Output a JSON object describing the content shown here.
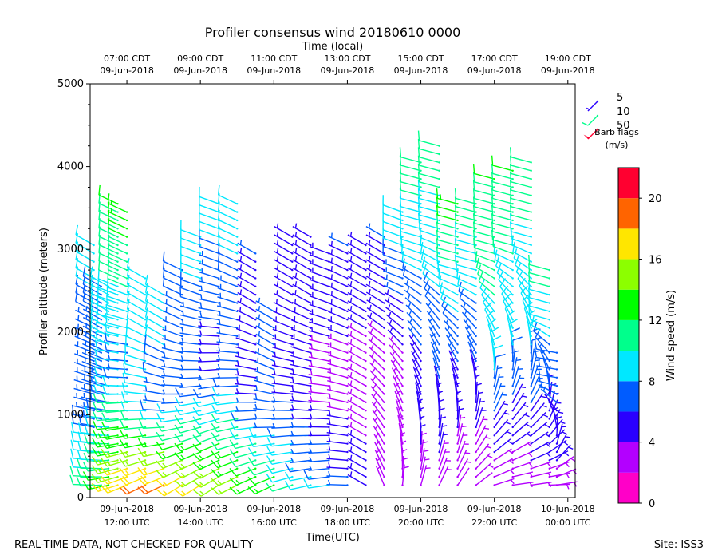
{
  "chart_data": {
    "type": "wind-barb",
    "title": "Profiler consensus wind 20180610 0000",
    "top_axis_label": "Time (local)",
    "xlabel": "Time(UTC)",
    "ylabel": "Profiler altitude (meters)",
    "ylim": [
      0,
      5000
    ],
    "y_ticks": [
      0,
      1000,
      2000,
      3000,
      4000,
      5000
    ],
    "x_range_hours_utc": [
      11.0,
      24.2
    ],
    "bottom_ticks": [
      {
        "hour": 12,
        "line1": "09-Jun-2018",
        "line2": "12:00 UTC"
      },
      {
        "hour": 14,
        "line1": "09-Jun-2018",
        "line2": "14:00 UTC"
      },
      {
        "hour": 16,
        "line1": "09-Jun-2018",
        "line2": "16:00 UTC"
      },
      {
        "hour": 18,
        "line1": "09-Jun-2018",
        "line2": "18:00 UTC"
      },
      {
        "hour": 20,
        "line1": "09-Jun-2018",
        "line2": "20:00 UTC"
      },
      {
        "hour": 22,
        "line1": "09-Jun-2018",
        "line2": "22:00 UTC"
      },
      {
        "hour": 24,
        "line1": "10-Jun-2018",
        "line2": "00:00 UTC"
      }
    ],
    "top_ticks": [
      {
        "hour": 12,
        "line1": "07:00 CDT",
        "line2": "09-Jun-2018"
      },
      {
        "hour": 14,
        "line1": "09:00 CDT",
        "line2": "09-Jun-2018"
      },
      {
        "hour": 16,
        "line1": "11:00 CDT",
        "line2": "09-Jun-2018"
      },
      {
        "hour": 18,
        "line1": "13:00 CDT",
        "line2": "09-Jun-2018"
      },
      {
        "hour": 20,
        "line1": "15:00 CDT",
        "line2": "09-Jun-2018"
      },
      {
        "hour": 22,
        "line1": "17:00 CDT",
        "line2": "09-Jun-2018"
      },
      {
        "hour": 24,
        "line1": "19:00 CDT",
        "line2": "09-Jun-2018"
      }
    ],
    "colorbar": {
      "label": "Wind speed (m/s)",
      "range": [
        0,
        22
      ],
      "ticks": [
        0,
        4,
        8,
        12,
        16,
        20
      ],
      "bins": [
        {
          "min": 0,
          "max": 2,
          "color": "#ff00c8"
        },
        {
          "min": 2,
          "max": 4,
          "color": "#b300ff"
        },
        {
          "min": 4,
          "max": 6,
          "color": "#2a00ff"
        },
        {
          "min": 6,
          "max": 8,
          "color": "#005cff"
        },
        {
          "min": 8,
          "max": 10,
          "color": "#00e8ff"
        },
        {
          "min": 10,
          "max": 12,
          "color": "#00ff8c"
        },
        {
          "min": 12,
          "max": 14,
          "color": "#00ff00"
        },
        {
          "min": 14,
          "max": 16,
          "color": "#8cff00"
        },
        {
          "min": 16,
          "max": 18,
          "color": "#ffe600"
        },
        {
          "min": 18,
          "max": 20,
          "color": "#ff6400"
        },
        {
          "min": 20,
          "max": 22,
          "color": "#ff0030"
        }
      ]
    },
    "legend": {
      "placement": "top-right",
      "entries": [
        {
          "label": "5",
          "speed": 5
        },
        {
          "label": "10",
          "speed": 10
        },
        {
          "label": "50",
          "speed": 50
        }
      ],
      "caption_line1": "Barb flags",
      "caption_line2": "(m/s)"
    },
    "profiles": [
      {
        "hour": 11.1,
        "top": 3100,
        "dirLow": 270,
        "dirHigh": 300,
        "spdLow": 11,
        "spdMid": 6,
        "spdHigh": 9
      },
      {
        "hour": 11.3,
        "top": 2600,
        "dirLow": 265,
        "dirHigh": 300,
        "spdLow": 12,
        "spdMid": 6,
        "spdHigh": 8
      },
      {
        "hour": 11.5,
        "top": 2550,
        "dirLow": 255,
        "dirHigh": 300,
        "spdLow": 14,
        "spdMid": 7,
        "spdHigh": 9
      },
      {
        "hour": 11.75,
        "top": 3550,
        "dirLow": 250,
        "dirHigh": 295,
        "spdLow": 17,
        "spdMid": 8,
        "spdHigh": 12
      },
      {
        "hour": 12.0,
        "top": 3450,
        "dirLow": 245,
        "dirHigh": 295,
        "spdLow": 19,
        "spdMid": 7,
        "spdHigh": 13
      },
      {
        "hour": 12.5,
        "top": 2700,
        "dirLow": 240,
        "dirHigh": 300,
        "spdLow": 20,
        "spdMid": 8,
        "spdHigh": 9
      },
      {
        "hour": 13.0,
        "top": 2450,
        "dirLow": 240,
        "dirHigh": 300,
        "spdLow": 21,
        "spdMid": 7,
        "spdHigh": 9
      },
      {
        "hour": 13.5,
        "top": 2800,
        "dirLow": 235,
        "dirHigh": 295,
        "spdLow": 19,
        "spdMid": 6,
        "spdHigh": 8
      },
      {
        "hour": 14.0,
        "top": 3200,
        "dirLow": 235,
        "dirHigh": 290,
        "spdLow": 18,
        "spdMid": 6,
        "spdHigh": 9
      },
      {
        "hour": 14.5,
        "top": 3600,
        "dirLow": 235,
        "dirHigh": 290,
        "spdLow": 17,
        "spdMid": 5,
        "spdHigh": 9
      },
      {
        "hour": 15.0,
        "top": 3550,
        "dirLow": 240,
        "dirHigh": 295,
        "spdLow": 16,
        "spdMid": 6,
        "spdHigh": 9
      },
      {
        "hour": 15.5,
        "top": 2950,
        "dirLow": 240,
        "dirHigh": 300,
        "spdLow": 15,
        "spdMid": 5,
        "spdHigh": 6
      },
      {
        "hour": 16.0,
        "top": 2300,
        "dirLow": 240,
        "dirHigh": 300,
        "spdLow": 14,
        "spdMid": 6,
        "spdHigh": 7
      },
      {
        "hour": 16.5,
        "top": 3200,
        "dirLow": 250,
        "dirHigh": 300,
        "spdLow": 11,
        "spdMid": 5,
        "spdHigh": 6
      },
      {
        "hour": 17.0,
        "top": 3200,
        "dirLow": 255,
        "dirHigh": 300,
        "spdLow": 9,
        "spdMid": 4,
        "spdHigh": 6
      },
      {
        "hour": 17.5,
        "top": 3000,
        "dirLow": 260,
        "dirHigh": 290,
        "spdLow": 9,
        "spdMid": 3,
        "spdHigh": 6
      },
      {
        "hour": 18.0,
        "top": 3050,
        "dirLow": 270,
        "dirHigh": 295,
        "spdLow": 7,
        "spdMid": 3,
        "spdHigh": 6
      },
      {
        "hour": 18.5,
        "top": 3100,
        "dirLow": 300,
        "dirHigh": 300,
        "spdLow": 5,
        "spdMid": 3,
        "spdHigh": 6
      },
      {
        "hour": 19.0,
        "top": 3150,
        "dirLow": 340,
        "dirHigh": 300,
        "spdLow": 3,
        "spdMid": 3,
        "spdHigh": 6
      },
      {
        "hour": 19.5,
        "top": 3500,
        "dirLow": 10,
        "dirHigh": 290,
        "spdLow": 3,
        "spdMid": 3,
        "spdHigh": 10
      },
      {
        "hour": 20.0,
        "top": 4050,
        "dirLow": 20,
        "dirHigh": 285,
        "spdLow": 3,
        "spdMid": 6,
        "spdHigh": 11
      },
      {
        "hour": 20.5,
        "top": 4250,
        "dirLow": 30,
        "dirHigh": 285,
        "spdLow": 3,
        "spdMid": 7,
        "spdHigh": 11
      },
      {
        "hour": 21.0,
        "top": 3600,
        "dirLow": 40,
        "dirHigh": 285,
        "spdLow": 2,
        "spdMid": 6,
        "spdHigh": 13
      },
      {
        "hour": 21.5,
        "top": 3550,
        "dirLow": 60,
        "dirHigh": 285,
        "spdLow": 2,
        "spdMid": 6,
        "spdHigh": 11
      },
      {
        "hour": 22.0,
        "top": 3850,
        "dirLow": 80,
        "dirHigh": 285,
        "spdLow": 2,
        "spdMid": 9,
        "spdHigh": 12
      },
      {
        "hour": 22.5,
        "top": 3950,
        "dirLow": 90,
        "dirHigh": 285,
        "spdLow": 2,
        "spdMid": 8,
        "spdHigh": 12
      },
      {
        "hour": 23.0,
        "top": 4050,
        "dirLow": 90,
        "dirHigh": 285,
        "spdLow": 3,
        "spdMid": 8,
        "spdHigh": 11
      },
      {
        "hour": 23.5,
        "top": 2800,
        "dirLow": 100,
        "dirHigh": 285,
        "spdLow": 3,
        "spdMid": 6,
        "spdHigh": 11
      },
      {
        "hour": 23.7,
        "top": 1800,
        "dirLow": 100,
        "dirHigh": 280,
        "spdLow": 3,
        "spdMid": 5,
        "spdHigh": 8
      }
    ]
  },
  "footer": {
    "left_note": "REAL-TIME DATA, NOT CHECKED FOR QUALITY",
    "site": "Site: ISS3"
  }
}
